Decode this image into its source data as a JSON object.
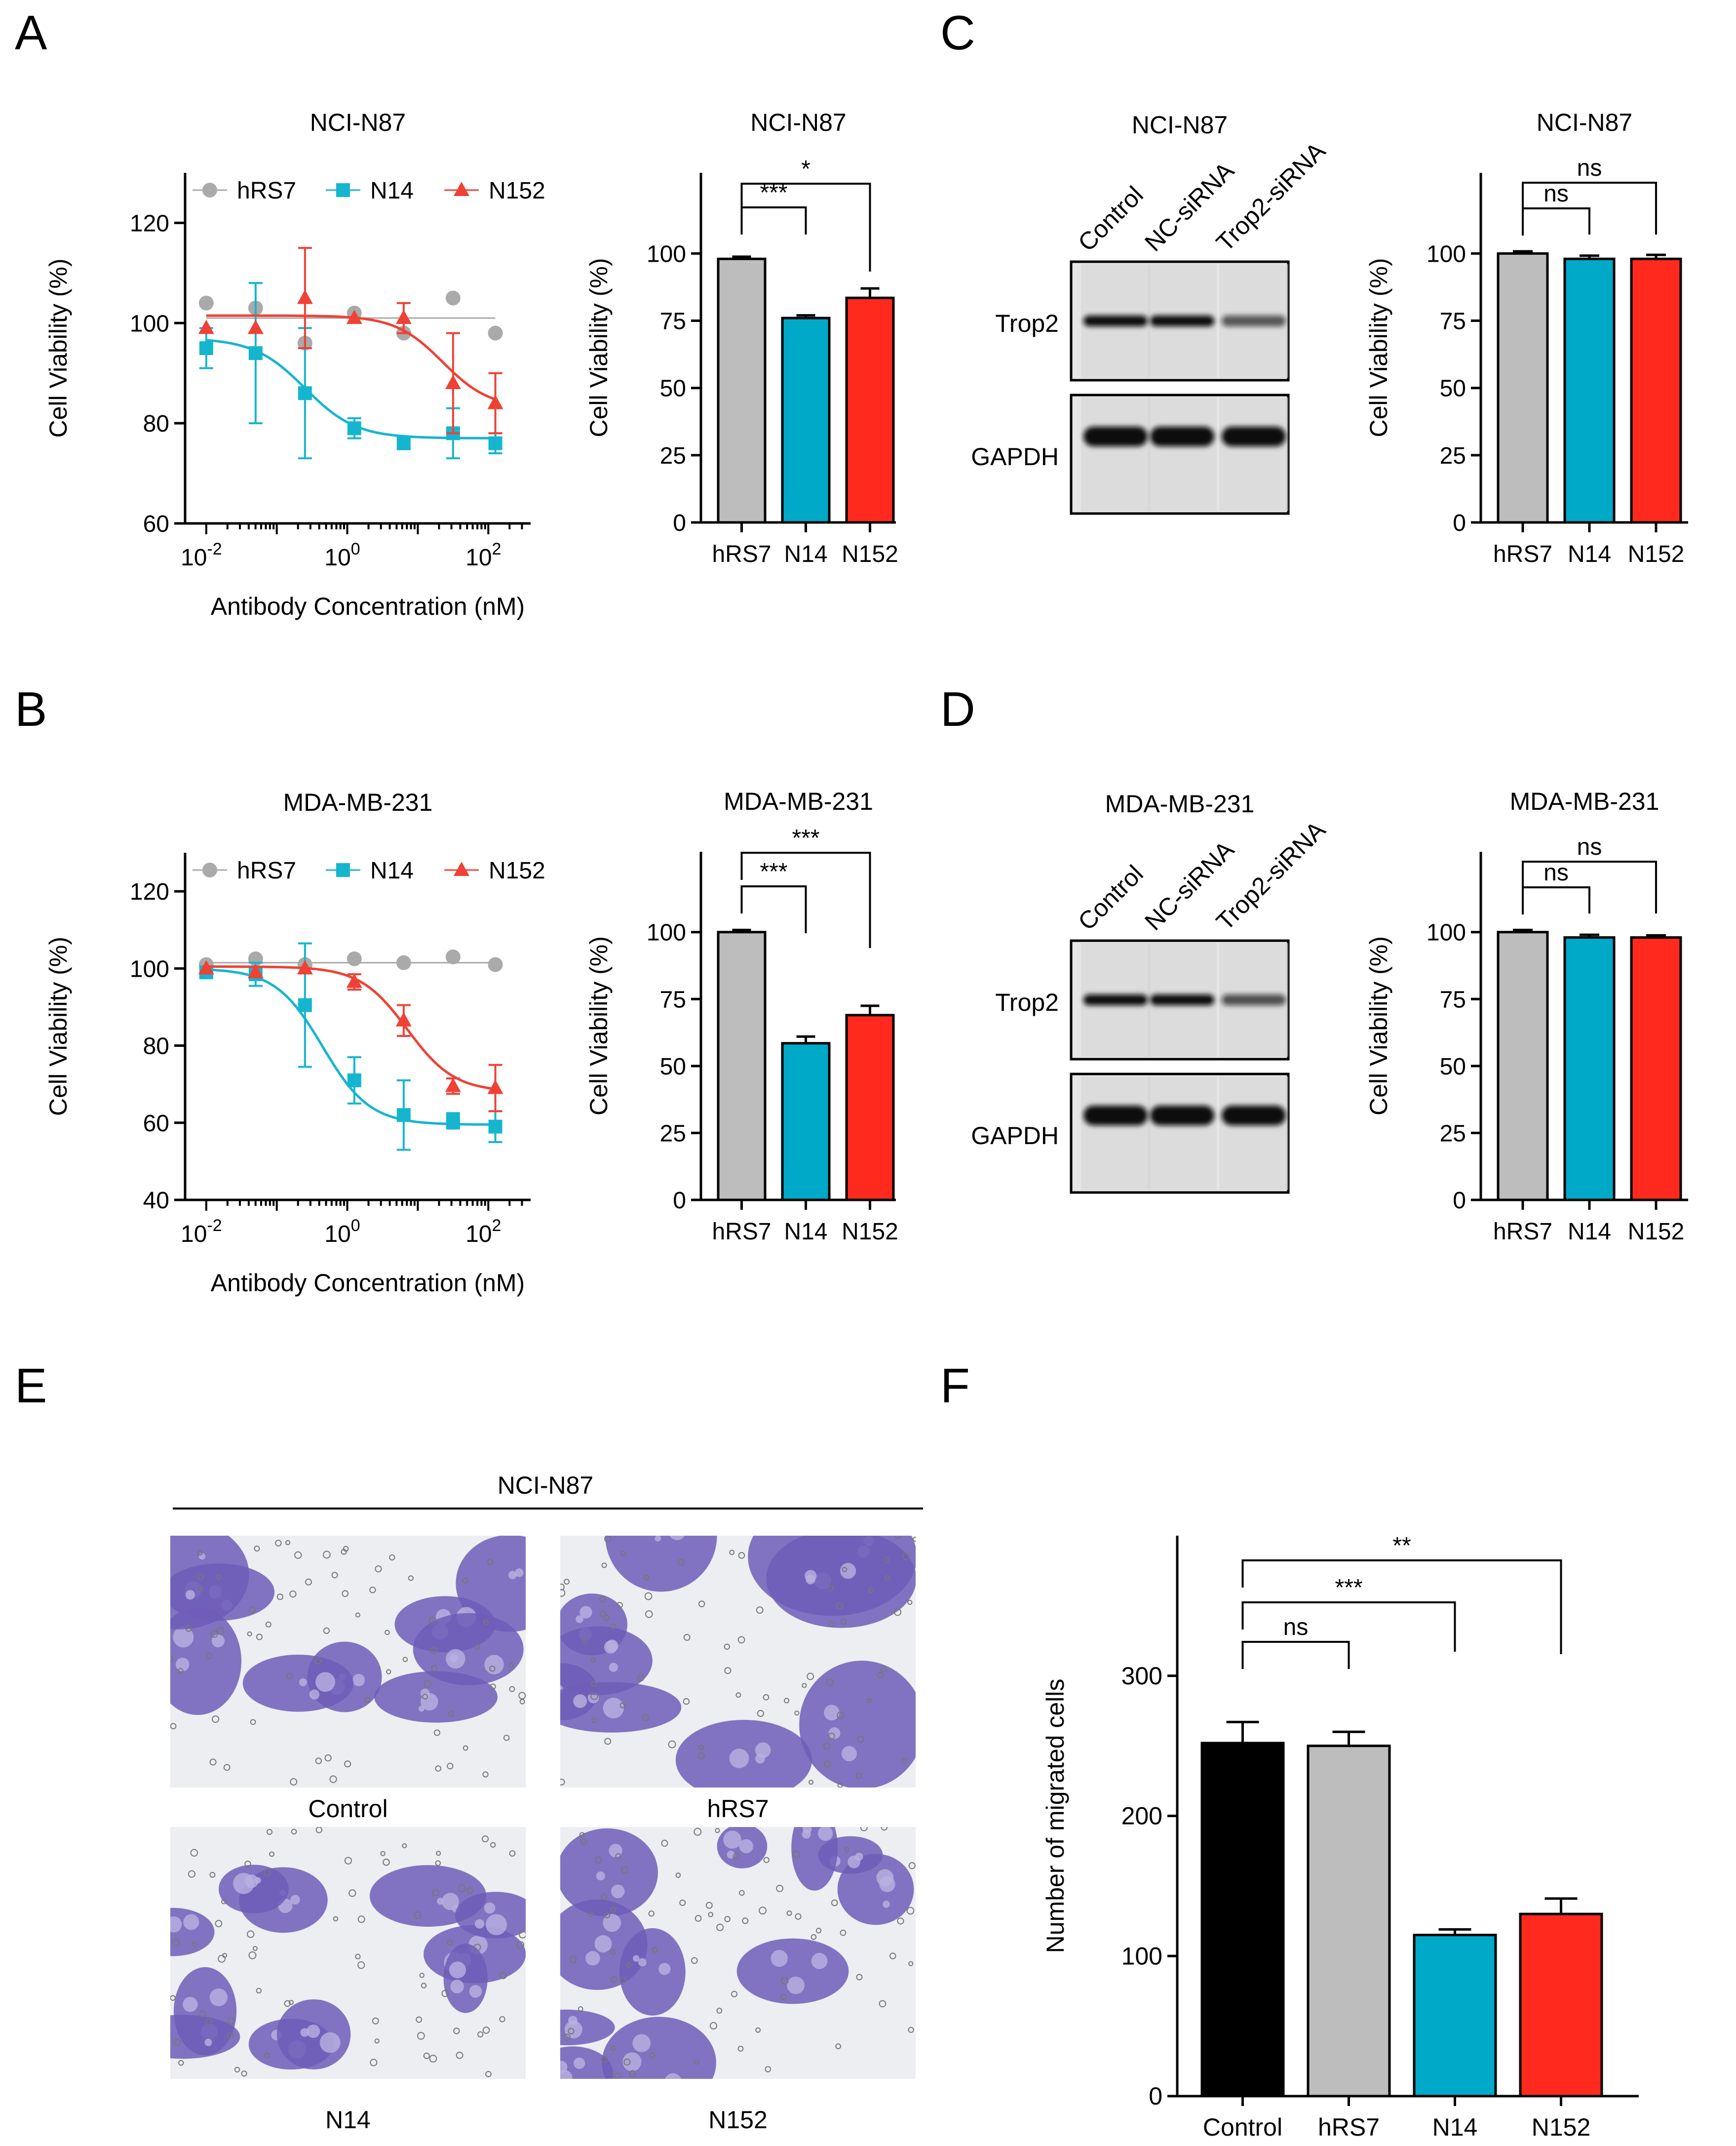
{
  "panel_letters": [
    "A",
    "B",
    "C",
    "D",
    "E",
    "F"
  ],
  "colors": {
    "hRS7": "#aaaaaa",
    "N14": "#16b5cf",
    "N152": "#ef4135",
    "control_bar": "#000000",
    "hRS7_bar": "#bdbdbd",
    "N14_bar": "#00a9c8",
    "N152_bar": "#ff2a1d",
    "stain": "#6f5db8"
  },
  "chart_data": [
    {
      "id": "A_curve",
      "type": "scatter",
      "title": "NCI-N87",
      "xlabel": "Antibody Concentration (nM)",
      "ylabel": "Cell Viability (%)",
      "xscale": "log10",
      "xlim_log": [
        -2.3,
        2.6
      ],
      "ylim": [
        60,
        130
      ],
      "yticks": [
        60,
        80,
        100,
        120
      ],
      "xticks": [
        {
          "base": "10",
          "exp": "-2",
          "log": -2
        },
        {
          "base": "10",
          "exp": "0",
          "log": 0
        },
        {
          "base": "10",
          "exp": "2",
          "log": 2
        }
      ],
      "legend": [
        "hRS7",
        "N14",
        "N152"
      ],
      "series": [
        {
          "name": "hRS7",
          "marker": "circle",
          "x_log": [
            -2,
            -1.3,
            -0.6,
            0.1,
            0.8,
            1.5,
            2.1
          ],
          "y": [
            104,
            103,
            96,
            102,
            98,
            105,
            98
          ],
          "err": [
            0,
            0,
            0,
            0,
            0,
            0,
            0
          ],
          "fit": {
            "type": "flat",
            "top": 101
          }
        },
        {
          "name": "N14",
          "marker": "square",
          "x_log": [
            -2,
            -1.3,
            -0.6,
            0.1,
            0.8,
            1.5,
            2.1
          ],
          "y": [
            95,
            94,
            86,
            79,
            76,
            78,
            76
          ],
          "err": [
            4,
            14,
            13,
            2,
            1,
            5,
            2
          ],
          "fit": {
            "type": "sigmoid",
            "top": 97,
            "bottom": 77,
            "ec50_log": -0.6,
            "hill": 1.2
          }
        },
        {
          "name": "N152",
          "marker": "triangle",
          "x_log": [
            -2,
            -1.3,
            -0.6,
            0.1,
            0.8,
            1.5,
            2.1
          ],
          "y": [
            99,
            99,
            105,
            101,
            101,
            88,
            84
          ],
          "err": [
            0,
            0,
            10,
            0,
            3,
            10,
            6
          ],
          "fit": {
            "type": "sigmoid",
            "top": 101.5,
            "bottom": 83,
            "ec50_log": 1.35,
            "hill": 1.3
          }
        }
      ]
    },
    {
      "id": "A_bar",
      "type": "bar",
      "title": "NCI-N87",
      "ylabel": "Cell Viability (%)",
      "categories": [
        "hRS7",
        "N14",
        "N152"
      ],
      "values": [
        98,
        76,
        83.5
      ],
      "errors": [
        0.8,
        1,
        3.5
      ],
      "ylim": [
        0,
        130
      ],
      "yticks": [
        0,
        25,
        50,
        75,
        100
      ],
      "comparisons": [
        {
          "from": 0,
          "to": 1,
          "label": "***"
        },
        {
          "from": 0,
          "to": 2,
          "label": "*"
        }
      ]
    },
    {
      "id": "B_curve",
      "type": "scatter",
      "title": "MDA-MB-231",
      "xlabel": "Antibody Concentration (nM)",
      "ylabel": "Cell Viability (%)",
      "xscale": "log10",
      "xlim_log": [
        -2.3,
        2.6
      ],
      "ylim": [
        40,
        130
      ],
      "yticks": [
        40,
        60,
        80,
        100,
        120
      ],
      "xticks": [
        {
          "base": "10",
          "exp": "-2",
          "log": -2
        },
        {
          "base": "10",
          "exp": "0",
          "log": 0
        },
        {
          "base": "10",
          "exp": "2",
          "log": 2
        }
      ],
      "legend": [
        "hRS7",
        "N14",
        "N152"
      ],
      "series": [
        {
          "name": "hRS7",
          "marker": "circle",
          "x_log": [
            -2,
            -1.3,
            -0.6,
            0.1,
            0.8,
            1.5,
            2.1
          ],
          "y": [
            101,
            102.5,
            101,
            102.5,
            101.5,
            103,
            101
          ],
          "err": [
            0,
            0,
            0,
            0,
            0,
            0,
            0
          ],
          "fit": {
            "type": "flat",
            "top": 101.5
          }
        },
        {
          "name": "N14",
          "marker": "square",
          "x_log": [
            -2,
            -1.3,
            -0.6,
            0.1,
            0.8,
            1.5,
            2.1
          ],
          "y": [
            99,
            98.5,
            90.5,
            71,
            62,
            60.5,
            59
          ],
          "err": [
            1,
            3,
            16,
            6,
            9,
            2,
            4
          ],
          "fit": {
            "type": "sigmoid",
            "top": 100,
            "bottom": 59.5,
            "ec50_log": -0.35,
            "hill": 1.3
          }
        },
        {
          "name": "N152",
          "marker": "triangle",
          "x_log": [
            -2,
            -1.3,
            -0.6,
            0.1,
            0.8,
            1.5,
            2.1
          ],
          "y": [
            100,
            99,
            100,
            96.5,
            86.5,
            69.5,
            69
          ],
          "err": [
            0,
            0,
            0,
            2,
            4,
            2,
            6
          ],
          "fit": {
            "type": "sigmoid",
            "top": 100.5,
            "bottom": 68,
            "ec50_log": 0.85,
            "hill": 1.3
          }
        }
      ]
    },
    {
      "id": "B_bar",
      "type": "bar",
      "title": "MDA-MB-231",
      "ylabel": "Cell Viability (%)",
      "categories": [
        "hRS7",
        "N14",
        "N152"
      ],
      "values": [
        100,
        58.5,
        69
      ],
      "errors": [
        0.8,
        2.5,
        3.5
      ],
      "ylim": [
        0,
        130
      ],
      "yticks": [
        0,
        25,
        50,
        75,
        100
      ],
      "comparisons": [
        {
          "from": 0,
          "to": 1,
          "label": "***"
        },
        {
          "from": 0,
          "to": 2,
          "label": "***"
        }
      ]
    },
    {
      "id": "C_bar",
      "type": "bar",
      "title": "NCI-N87",
      "ylabel": "Cell Viability (%)",
      "categories": [
        "hRS7",
        "N14",
        "N152"
      ],
      "values": [
        100,
        98,
        98
      ],
      "errors": [
        0.8,
        1.2,
        1.5
      ],
      "ylim": [
        0,
        130
      ],
      "yticks": [
        0,
        25,
        50,
        75,
        100
      ],
      "comparisons": [
        {
          "from": 0,
          "to": 1,
          "label": "ns"
        },
        {
          "from": 0,
          "to": 2,
          "label": "ns"
        }
      ]
    },
    {
      "id": "D_bar",
      "type": "bar",
      "title": "MDA-MB-231",
      "ylabel": "Cell Viability (%)",
      "categories": [
        "hRS7",
        "N14",
        "N152"
      ],
      "values": [
        100,
        98,
        98
      ],
      "errors": [
        0.8,
        1,
        0.8
      ],
      "ylim": [
        0,
        130
      ],
      "yticks": [
        0,
        25,
        50,
        75,
        100
      ],
      "comparisons": [
        {
          "from": 0,
          "to": 1,
          "label": "ns"
        },
        {
          "from": 0,
          "to": 2,
          "label": "ns"
        }
      ]
    },
    {
      "id": "F_bar",
      "type": "bar",
      "title": "",
      "ylabel": "Number of migrated cells",
      "categories": [
        "Control",
        "hRS7",
        "N14",
        "N152"
      ],
      "values": [
        252,
        250,
        115,
        130
      ],
      "errors": [
        15,
        10,
        4,
        11
      ],
      "ylim": [
        0,
        400
      ],
      "yticks": [
        0,
        100,
        200,
        300
      ],
      "comparisons": [
        {
          "from": 0,
          "to": 1,
          "label": "ns"
        },
        {
          "from": 0,
          "to": 2,
          "label": "***"
        },
        {
          "from": 0,
          "to": 3,
          "label": "**"
        }
      ]
    }
  ],
  "western_blots": [
    {
      "id": "C_blot",
      "title": "NCI-N87",
      "lanes": [
        "Control",
        "NC-siRNA",
        "Trop2-siRNA"
      ],
      "rows": [
        {
          "label": "Trop2",
          "band_intensity": [
            1.0,
            1.0,
            0.45
          ]
        },
        {
          "label": "GAPDH",
          "band_intensity": [
            1.0,
            1.0,
            1.0
          ]
        }
      ]
    },
    {
      "id": "D_blot",
      "title": "MDA-MB-231",
      "lanes": [
        "Control",
        "NC-siRNA",
        "Trop2-siRNA"
      ],
      "rows": [
        {
          "label": "Trop2",
          "band_intensity": [
            1.0,
            1.0,
            0.5
          ]
        },
        {
          "label": "GAPDH",
          "band_intensity": [
            1.0,
            1.0,
            1.0
          ]
        }
      ]
    }
  ],
  "micrographs": {
    "title": "NCI-N87",
    "labels": [
      "Control",
      "hRS7",
      "N14",
      "N152"
    ]
  }
}
